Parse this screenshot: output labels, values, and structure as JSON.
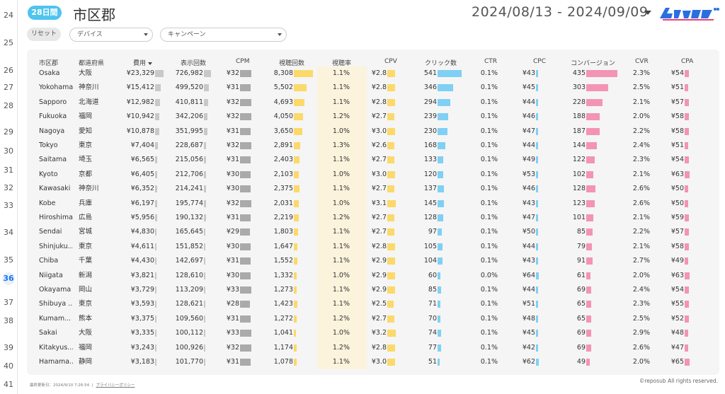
{
  "gutter": {
    "rows": [
      {
        "label": "24",
        "active": false
      },
      {
        "label": "25",
        "active": false
      },
      {
        "label": "26",
        "active": false
      },
      {
        "label": "27",
        "active": false
      },
      {
        "label": "28",
        "active": false
      },
      {
        "label": "29",
        "active": false
      },
      {
        "label": "30",
        "active": false
      },
      {
        "label": "31",
        "active": false
      },
      {
        "label": "32",
        "active": false
      },
      {
        "label": "33",
        "active": false
      },
      {
        "label": "34",
        "active": false
      },
      {
        "label": "35",
        "active": false
      },
      {
        "label": "36",
        "active": true
      },
      {
        "label": "37",
        "active": false
      },
      {
        "label": "38",
        "active": false
      },
      {
        "label": "39",
        "active": false
      },
      {
        "label": "40",
        "active": false
      },
      {
        "label": "41",
        "active": false
      }
    ]
  },
  "header": {
    "period_badge": "28日間",
    "title": "市区郡",
    "date_range": "2024/08/13 - 2024/09/09",
    "logo_text": "レポサブ"
  },
  "filters": {
    "reset_label": "リセット",
    "device_label": "デバイス",
    "campaign_label": "キャンペーン"
  },
  "table": {
    "columns": [
      "市区郡",
      "都道府県",
      "費用",
      "表示回数",
      "CPM",
      "視聴回数",
      "視聴率",
      "CPV",
      "クリック数",
      "CTR",
      "CPC",
      "コンバージョン",
      "CVR",
      "CPA"
    ],
    "sorted_column": "費用",
    "bar_colors": {
      "cost": "#c8c8c8",
      "impressions": "#c8c8c8",
      "cpm": "#aaaaaa",
      "views": "#fbd96a",
      "cpv": "#fbd96a",
      "clicks": "#7fd0f4",
      "cpc": "#7fd0f4",
      "conversions": "#f394b4",
      "cpa": "#f394b4"
    },
    "highlight_color": "#fcf3dd",
    "rows": [
      {
        "city": "Osaka",
        "pref": "大阪",
        "cost": "¥23,329",
        "cost_v": 23329,
        "imp": "726,982",
        "imp_v": 726982,
        "cpm": "¥32",
        "cpm_v": 32,
        "views": "8,308",
        "views_v": 8308,
        "vrate": "1.1%",
        "cpv": "¥2.8",
        "cpv_v": 2.8,
        "clicks": "541",
        "clicks_v": 541,
        "ctr": "0.1%",
        "cpc": "¥43",
        "cpc_v": 43,
        "cv": "435",
        "cv_v": 435,
        "cvr": "2.3%",
        "cpa": "¥54",
        "cpa_v": 54
      },
      {
        "city": "Yokohama",
        "pref": "神奈川",
        "cost": "¥15,412",
        "cost_v": 15412,
        "imp": "499,520",
        "imp_v": 499520,
        "cpm": "¥31",
        "cpm_v": 31,
        "views": "5,502",
        "views_v": 5502,
        "vrate": "1.1%",
        "cpv": "¥2.8",
        "cpv_v": 2.8,
        "clicks": "346",
        "clicks_v": 346,
        "ctr": "0.1%",
        "cpc": "¥45",
        "cpc_v": 45,
        "cv": "303",
        "cv_v": 303,
        "cvr": "2.5%",
        "cpa": "¥51",
        "cpa_v": 51
      },
      {
        "city": "Sapporo",
        "pref": "北海道",
        "cost": "¥12,982",
        "cost_v": 12982,
        "imp": "410,811",
        "imp_v": 410811,
        "cpm": "¥32",
        "cpm_v": 32,
        "views": "4,693",
        "views_v": 4693,
        "vrate": "1.1%",
        "cpv": "¥2.8",
        "cpv_v": 2.8,
        "clicks": "294",
        "clicks_v": 294,
        "ctr": "0.1%",
        "cpc": "¥44",
        "cpc_v": 44,
        "cv": "228",
        "cv_v": 228,
        "cvr": "2.1%",
        "cpa": "¥57",
        "cpa_v": 57
      },
      {
        "city": "Fukuoka",
        "pref": "福岡",
        "cost": "¥10,942",
        "cost_v": 10942,
        "imp": "342,206",
        "imp_v": 342206,
        "cpm": "¥32",
        "cpm_v": 32,
        "views": "4,050",
        "views_v": 4050,
        "vrate": "1.2%",
        "cpv": "¥2.7",
        "cpv_v": 2.7,
        "clicks": "239",
        "clicks_v": 239,
        "ctr": "0.1%",
        "cpc": "¥46",
        "cpc_v": 46,
        "cv": "188",
        "cv_v": 188,
        "cvr": "2.0%",
        "cpa": "¥58",
        "cpa_v": 58
      },
      {
        "city": "Nagoya",
        "pref": "愛知",
        "cost": "¥10,878",
        "cost_v": 10878,
        "imp": "351,995",
        "imp_v": 351995,
        "cpm": "¥31",
        "cpm_v": 31,
        "views": "3,650",
        "views_v": 3650,
        "vrate": "1.0%",
        "cpv": "¥3.0",
        "cpv_v": 3.0,
        "clicks": "230",
        "clicks_v": 230,
        "ctr": "0.1%",
        "cpc": "¥47",
        "cpc_v": 47,
        "cv": "187",
        "cv_v": 187,
        "cvr": "2.2%",
        "cpa": "¥58",
        "cpa_v": 58
      },
      {
        "city": "Tokyo",
        "pref": "東京",
        "cost": "¥7,404",
        "cost_v": 7404,
        "imp": "228,687",
        "imp_v": 228687,
        "cpm": "¥32",
        "cpm_v": 32,
        "views": "2,891",
        "views_v": 2891,
        "vrate": "1.3%",
        "cpv": "¥2.6",
        "cpv_v": 2.6,
        "clicks": "168",
        "clicks_v": 168,
        "ctr": "0.1%",
        "cpc": "¥44",
        "cpc_v": 44,
        "cv": "144",
        "cv_v": 144,
        "cvr": "2.4%",
        "cpa": "¥51",
        "cpa_v": 51
      },
      {
        "city": "Saitama",
        "pref": "埼玉",
        "cost": "¥6,565",
        "cost_v": 6565,
        "imp": "215,056",
        "imp_v": 215056,
        "cpm": "¥31",
        "cpm_v": 31,
        "views": "2,403",
        "views_v": 2403,
        "vrate": "1.1%",
        "cpv": "¥2.7",
        "cpv_v": 2.7,
        "clicks": "133",
        "clicks_v": 133,
        "ctr": "0.1%",
        "cpc": "¥49",
        "cpc_v": 49,
        "cv": "122",
        "cv_v": 122,
        "cvr": "2.3%",
        "cpa": "¥54",
        "cpa_v": 54
      },
      {
        "city": "Kyoto",
        "pref": "京都",
        "cost": "¥6,405",
        "cost_v": 6405,
        "imp": "212,706",
        "imp_v": 212706,
        "cpm": "¥30",
        "cpm_v": 30,
        "views": "2,103",
        "views_v": 2103,
        "vrate": "1.0%",
        "cpv": "¥3.0",
        "cpv_v": 3.0,
        "clicks": "120",
        "clicks_v": 120,
        "ctr": "0.1%",
        "cpc": "¥53",
        "cpc_v": 53,
        "cv": "102",
        "cv_v": 102,
        "cvr": "2.1%",
        "cpa": "¥63",
        "cpa_v": 63
      },
      {
        "city": "Kawasaki",
        "pref": "神奈川",
        "cost": "¥6,352",
        "cost_v": 6352,
        "imp": "214,241",
        "imp_v": 214241,
        "cpm": "¥30",
        "cpm_v": 30,
        "views": "2,375",
        "views_v": 2375,
        "vrate": "1.1%",
        "cpv": "¥2.7",
        "cpv_v": 2.7,
        "clicks": "137",
        "clicks_v": 137,
        "ctr": "0.1%",
        "cpc": "¥46",
        "cpc_v": 46,
        "cv": "128",
        "cv_v": 128,
        "cvr": "2.6%",
        "cpa": "¥50",
        "cpa_v": 50
      },
      {
        "city": "Kobe",
        "pref": "兵庫",
        "cost": "¥6,197",
        "cost_v": 6197,
        "imp": "195,774",
        "imp_v": 195774,
        "cpm": "¥32",
        "cpm_v": 32,
        "views": "2,031",
        "views_v": 2031,
        "vrate": "1.0%",
        "cpv": "¥3.1",
        "cpv_v": 3.1,
        "clicks": "145",
        "clicks_v": 145,
        "ctr": "0.1%",
        "cpc": "¥43",
        "cpc_v": 43,
        "cv": "123",
        "cv_v": 123,
        "cvr": "2.6%",
        "cpa": "¥50",
        "cpa_v": 50
      },
      {
        "city": "Hiroshima",
        "pref": "広島",
        "cost": "¥5,956",
        "cost_v": 5956,
        "imp": "190,132",
        "imp_v": 190132,
        "cpm": "¥31",
        "cpm_v": 31,
        "views": "2,219",
        "views_v": 2219,
        "vrate": "1.2%",
        "cpv": "¥2.7",
        "cpv_v": 2.7,
        "clicks": "128",
        "clicks_v": 128,
        "ctr": "0.1%",
        "cpc": "¥47",
        "cpc_v": 47,
        "cv": "101",
        "cv_v": 101,
        "cvr": "2.1%",
        "cpa": "¥59",
        "cpa_v": 59
      },
      {
        "city": "Sendai",
        "pref": "宮城",
        "cost": "¥4,830",
        "cost_v": 4830,
        "imp": "165,645",
        "imp_v": 165645,
        "cpm": "¥29",
        "cpm_v": 29,
        "views": "1,803",
        "views_v": 1803,
        "vrate": "1.1%",
        "cpv": "¥2.7",
        "cpv_v": 2.7,
        "clicks": "97",
        "clicks_v": 97,
        "ctr": "0.1%",
        "cpc": "¥50",
        "cpc_v": 50,
        "cv": "85",
        "cv_v": 85,
        "cvr": "2.2%",
        "cpa": "¥57",
        "cpa_v": 57
      },
      {
        "city": "Shinjuku...",
        "pref": "東京",
        "cost": "¥4,611",
        "cost_v": 4611,
        "imp": "151,852",
        "imp_v": 151852,
        "cpm": "¥30",
        "cpm_v": 30,
        "views": "1,647",
        "views_v": 1647,
        "vrate": "1.1%",
        "cpv": "¥2.8",
        "cpv_v": 2.8,
        "clicks": "105",
        "clicks_v": 105,
        "ctr": "0.1%",
        "cpc": "¥44",
        "cpc_v": 44,
        "cv": "79",
        "cv_v": 79,
        "cvr": "2.1%",
        "cpa": "¥58",
        "cpa_v": 58
      },
      {
        "city": "Chiba",
        "pref": "千葉",
        "cost": "¥4,430",
        "cost_v": 4430,
        "imp": "142,697",
        "imp_v": 142697,
        "cpm": "¥31",
        "cpm_v": 31,
        "views": "1,552",
        "views_v": 1552,
        "vrate": "1.1%",
        "cpv": "¥2.9",
        "cpv_v": 2.9,
        "clicks": "104",
        "clicks_v": 104,
        "ctr": "0.1%",
        "cpc": "¥43",
        "cpc_v": 43,
        "cv": "91",
        "cv_v": 91,
        "cvr": "2.7%",
        "cpa": "¥49",
        "cpa_v": 49
      },
      {
        "city": "Niigata",
        "pref": "新潟",
        "cost": "¥3,821",
        "cost_v": 3821,
        "imp": "128,610",
        "imp_v": 128610,
        "cpm": "¥30",
        "cpm_v": 30,
        "views": "1,332",
        "views_v": 1332,
        "vrate": "1.0%",
        "cpv": "¥2.9",
        "cpv_v": 2.9,
        "clicks": "60",
        "clicks_v": 60,
        "ctr": "0.0%",
        "cpc": "¥64",
        "cpc_v": 64,
        "cv": "61",
        "cv_v": 61,
        "cvr": "2.0%",
        "cpa": "¥63",
        "cpa_v": 63
      },
      {
        "city": "Okayama",
        "pref": "岡山",
        "cost": "¥3,729",
        "cost_v": 3729,
        "imp": "113,209",
        "imp_v": 113209,
        "cpm": "¥33",
        "cpm_v": 33,
        "views": "1,273",
        "views_v": 1273,
        "vrate": "1.1%",
        "cpv": "¥2.9",
        "cpv_v": 2.9,
        "clicks": "85",
        "clicks_v": 85,
        "ctr": "0.1%",
        "cpc": "¥44",
        "cpc_v": 44,
        "cv": "69",
        "cv_v": 69,
        "cvr": "2.4%",
        "cpa": "¥54",
        "cpa_v": 54
      },
      {
        "city": "Shibuya ...",
        "pref": "東京",
        "cost": "¥3,593",
        "cost_v": 3593,
        "imp": "128,621",
        "imp_v": 128621,
        "cpm": "¥28",
        "cpm_v": 28,
        "views": "1,423",
        "views_v": 1423,
        "vrate": "1.1%",
        "cpv": "¥2.5",
        "cpv_v": 2.5,
        "clicks": "71",
        "clicks_v": 71,
        "ctr": "0.1%",
        "cpc": "¥51",
        "cpc_v": 51,
        "cv": "65",
        "cv_v": 65,
        "cvr": "2.3%",
        "cpa": "¥55",
        "cpa_v": 55
      },
      {
        "city": "Kumam...",
        "pref": "熊本",
        "cost": "¥3,375",
        "cost_v": 3375,
        "imp": "109,560",
        "imp_v": 109560,
        "cpm": "¥31",
        "cpm_v": 31,
        "views": "1,272",
        "views_v": 1272,
        "vrate": "1.2%",
        "cpv": "¥2.7",
        "cpv_v": 2.7,
        "clicks": "70",
        "clicks_v": 70,
        "ctr": "0.1%",
        "cpc": "¥48",
        "cpc_v": 48,
        "cv": "65",
        "cv_v": 65,
        "cvr": "2.5%",
        "cpa": "¥52",
        "cpa_v": 52
      },
      {
        "city": "Sakai",
        "pref": "大阪",
        "cost": "¥3,335",
        "cost_v": 3335,
        "imp": "100,112",
        "imp_v": 100112,
        "cpm": "¥33",
        "cpm_v": 33,
        "views": "1,041",
        "views_v": 1041,
        "vrate": "1.0%",
        "cpv": "¥3.2",
        "cpv_v": 3.2,
        "clicks": "74",
        "clicks_v": 74,
        "ctr": "0.1%",
        "cpc": "¥45",
        "cpc_v": 45,
        "cv": "69",
        "cv_v": 69,
        "cvr": "2.9%",
        "cpa": "¥48",
        "cpa_v": 48
      },
      {
        "city": "Kitakyus...",
        "pref": "福岡",
        "cost": "¥3,243",
        "cost_v": 3243,
        "imp": "100,926",
        "imp_v": 100926,
        "cpm": "¥32",
        "cpm_v": 32,
        "views": "1,174",
        "views_v": 1174,
        "vrate": "1.2%",
        "cpv": "¥2.8",
        "cpv_v": 2.8,
        "clicks": "77",
        "clicks_v": 77,
        "ctr": "0.1%",
        "cpc": "¥42",
        "cpc_v": 42,
        "cv": "69",
        "cv_v": 69,
        "cvr": "2.6%",
        "cpa": "¥47",
        "cpa_v": 47
      },
      {
        "city": "Hamama...",
        "pref": "静岡",
        "cost": "¥3,183",
        "cost_v": 3183,
        "imp": "101,770",
        "imp_v": 101770,
        "cpm": "¥31",
        "cpm_v": 31,
        "views": "1,078",
        "views_v": 1078,
        "vrate": "1.1%",
        "cpv": "¥3.0",
        "cpv_v": 3.0,
        "clicks": "51",
        "clicks_v": 51,
        "ctr": "0.1%",
        "cpc": "¥62",
        "cpc_v": 62,
        "cv": "49",
        "cv_v": 49,
        "cvr": "2.0%",
        "cpa": "¥65",
        "cpa_v": 65
      }
    ]
  },
  "footer": {
    "updated_label": "最終更新日：2024/9/10 7:26:54",
    "separator": "|",
    "privacy_label": "プライバシーポリシー",
    "copyright": "©reposub All rights reserved."
  }
}
